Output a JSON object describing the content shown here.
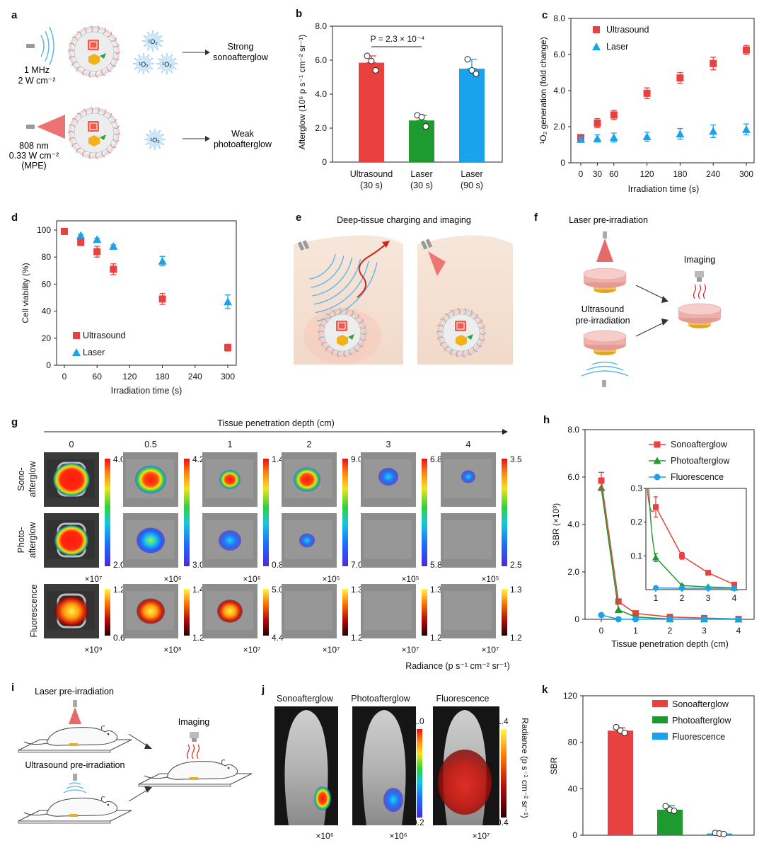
{
  "panel_letters": [
    "a",
    "b",
    "c",
    "d",
    "e",
    "f",
    "g",
    "h",
    "i",
    "j",
    "k"
  ],
  "panel_a": {
    "us_line1": "1 MHz",
    "us_line2": "2 W cm⁻²",
    "us_result": [
      "Strong",
      "sonoafterglow"
    ],
    "laser_line1": "808 nm",
    "laser_line2": "0.33 W cm⁻²",
    "laser_line3": "(MPE)",
    "laser_result": [
      "Weak",
      "photoafterglow"
    ],
    "singlet": "¹O₂"
  },
  "chart_b": {
    "type": "bar",
    "categories": [
      [
        "Ultrasound",
        "(30 s)"
      ],
      [
        "Laser",
        "(30 s)"
      ],
      [
        "Laser",
        "(90 s)"
      ]
    ],
    "values": [
      5.85,
      2.45,
      5.5
    ],
    "errors": [
      0.4,
      0.3,
      0.55
    ],
    "points": [
      [
        6.25,
        5.95,
        5.4
      ],
      [
        2.75,
        2.65,
        2.1
      ],
      [
        6.05,
        5.4,
        5.2
      ]
    ],
    "colors": [
      "#e8413f",
      "#1f9a2e",
      "#1aa3ec"
    ],
    "ylabel": "Afterglow (10⁶ p s⁻¹ cm⁻² sr⁻¹)",
    "ylim": [
      0,
      8
    ],
    "yticks": [
      "0",
      "2.0",
      "4.0",
      "6.0",
      "8.0"
    ],
    "annotation": "P = 2.3 × 10⁻⁴"
  },
  "chart_c": {
    "type": "scatter",
    "x": [
      0,
      30,
      60,
      120,
      180,
      240,
      300
    ],
    "xticks": [
      "0",
      "30",
      "60",
      "120",
      "180",
      "240",
      "300"
    ],
    "xlim": [
      0,
      300
    ],
    "ylim": [
      0,
      8
    ],
    "yticks": [
      "0",
      "2.0",
      "4.0",
      "6.0",
      "8.0"
    ],
    "xlabel": "Irradiation time (s)",
    "ylabel": "¹O₂ generation (fold change)",
    "series": [
      {
        "name": "Ultrasound",
        "marker": "square",
        "color": "#e8413f",
        "values": [
          1.4,
          2.2,
          2.65,
          3.85,
          4.7,
          5.5,
          6.25
        ],
        "errors": [
          0.15,
          0.25,
          0.25,
          0.3,
          0.3,
          0.35,
          0.25
        ]
      },
      {
        "name": "Laser",
        "marker": "triangle",
        "color": "#1aa3ec",
        "values": [
          1.3,
          1.35,
          1.4,
          1.45,
          1.6,
          1.75,
          1.85
        ],
        "errors": [
          0.15,
          0.2,
          0.25,
          0.25,
          0.3,
          0.35,
          0.3
        ]
      }
    ]
  },
  "chart_d": {
    "type": "scatter",
    "xticks": [
      "0",
      "60",
      "120",
      "180",
      "240",
      "300"
    ],
    "xlim": [
      0,
      300
    ],
    "ylim": [
      0,
      100
    ],
    "yticks": [
      "0",
      "20",
      "40",
      "60",
      "80",
      "100"
    ],
    "xlabel": "Irradiation time (s)",
    "ylabel": "Cell viability (%)",
    "series": [
      {
        "name": "Ultrasound",
        "marker": "square",
        "color": "#e8413f",
        "x": [
          0,
          30,
          60,
          90,
          180,
          300
        ],
        "values": [
          99,
          91,
          84,
          71,
          49,
          13
        ],
        "errors": [
          1,
          2.5,
          4,
          4,
          4,
          2.5
        ]
      },
      {
        "name": "Laser",
        "marker": "triangle",
        "color": "#1aa3ec",
        "x": [
          30,
          60,
          90,
          180,
          300
        ],
        "values": [
          96,
          93,
          88,
          77,
          47
        ],
        "errors": [
          1,
          1,
          1,
          3.5,
          5
        ]
      }
    ]
  },
  "panel_e": {
    "title": "Deep-tissue charging and imaging"
  },
  "panel_f": {
    "laser": "Laser pre-irradiation",
    "imaging": "Imaging",
    "us": [
      "Ultrasound",
      "pre-irradiation"
    ]
  },
  "panel_g": {
    "header": "Tissue penetration depth (cm)",
    "depths": [
      "0",
      "0.5",
      "1",
      "2",
      "3",
      "4"
    ],
    "row_labels": [
      [
        "Sono-",
        "afterglow"
      ],
      [
        "Photo-",
        "afterglow"
      ],
      [
        "Fluorescence"
      ]
    ],
    "afterglow_max": [
      "4.0",
      "4.2",
      "1.4",
      "9.0",
      "6.8",
      "3.5"
    ],
    "afterglow_min": [
      "2.0",
      "3.0",
      "0.8",
      "7.0",
      "5.8",
      "2.5"
    ],
    "afterglow_scale": [
      "×10⁷",
      "×10⁶",
      "×10⁶",
      "×10⁵",
      "×10⁵",
      "×10⁵"
    ],
    "fluor_max": [
      "1.2",
      "1.4",
      "5.0",
      "1.3",
      "1.3",
      "1.3"
    ],
    "fluor_min": [
      "0.6",
      "1.2",
      "4.4",
      "1.2",
      "1.2",
      "1.2"
    ],
    "fluor_scale": [
      "×10⁹",
      "×10⁸",
      "×10⁷",
      "×10⁷",
      "×10⁷",
      "×10⁷"
    ],
    "unit": "Radiance (p s⁻¹ cm⁻² sr⁻¹)"
  },
  "chart_h": {
    "type": "line",
    "x": [
      0,
      0.5,
      1,
      2,
      3,
      4
    ],
    "xlim": [
      0,
      4
    ],
    "xticks": [
      "0",
      "1",
      "2",
      "3",
      "4"
    ],
    "ylim": [
      0,
      8
    ],
    "yticks": [
      "0",
      "2.0",
      "4.0",
      "6.0",
      "8.0"
    ],
    "xlabel": "Tissue penetration depth (cm)",
    "ylabel": "SBR (×10³)",
    "series": [
      {
        "name": "Sonoafterglow",
        "marker": "square",
        "color": "#e8413f",
        "values": [
          5.85,
          0.75,
          0.25,
          0.1,
          0.05,
          0.015
        ]
      },
      {
        "name": "Photoafterglow",
        "marker": "triangle",
        "color": "#1f9a2e",
        "values": [
          5.55,
          0.4,
          0.1,
          0.012,
          0.008,
          0.005
        ]
      },
      {
        "name": "Fluorescence",
        "marker": "circle",
        "color": "#1aa3ec",
        "values": [
          0.18,
          0.005,
          0.004,
          0.004,
          0.004,
          0.004
        ]
      }
    ],
    "inset": {
      "x": [
        1,
        2,
        3,
        4
      ],
      "ylim": [
        0,
        0.3
      ],
      "yticks": [
        "0.1",
        "0.2",
        "0.3"
      ],
      "xticks": [
        "1",
        "2",
        "3",
        "4"
      ],
      "sono": [
        0.245,
        0.1,
        0.05,
        0.015
      ],
      "sono_err": [
        0.03,
        0.01,
        0.005,
        0.003
      ],
      "photo": [
        0.095,
        0.012,
        0.008,
        0.005
      ],
      "photo_err": [
        0.012,
        0.003,
        0.002,
        0.001
      ],
      "fluor": [
        0.005,
        0.004,
        0.004,
        0.004
      ]
    }
  },
  "panel_i": {
    "laser": "Laser pre-irradiation",
    "imaging": "Imaging",
    "us": "Ultrasound pre-irradiation"
  },
  "panel_j": {
    "titles": [
      "Sonoafterglow",
      "Photoafterglow",
      "Fluorescence"
    ],
    "scale1_max": "1.0",
    "scale1_min": "0.2",
    "scale2_max": "1.4",
    "scale2_min": "0.4",
    "multipliers": [
      "×10⁶",
      "×10⁶",
      "×10⁷"
    ],
    "unit": "Radiance (p s⁻¹ cm⁻² sr⁻¹)"
  },
  "chart_k": {
    "type": "bar",
    "categories": [
      "Sonoafterglow",
      "Photoafterglow",
      "Fluorescence"
    ],
    "values": [
      90,
      22,
      1.5
    ],
    "errors": [
      2.5,
      3.5,
      0.8
    ],
    "points": [
      [
        93,
        90,
        88
      ],
      [
        25,
        22,
        21
      ],
      [
        2,
        1.5,
        1
      ]
    ],
    "colors": [
      "#e8413f",
      "#1f9a2e",
      "#1aa3ec"
    ],
    "ylabel": "SBR",
    "ylim": [
      0,
      120
    ],
    "yticks": [
      "0",
      "40",
      "80",
      "120"
    ]
  }
}
